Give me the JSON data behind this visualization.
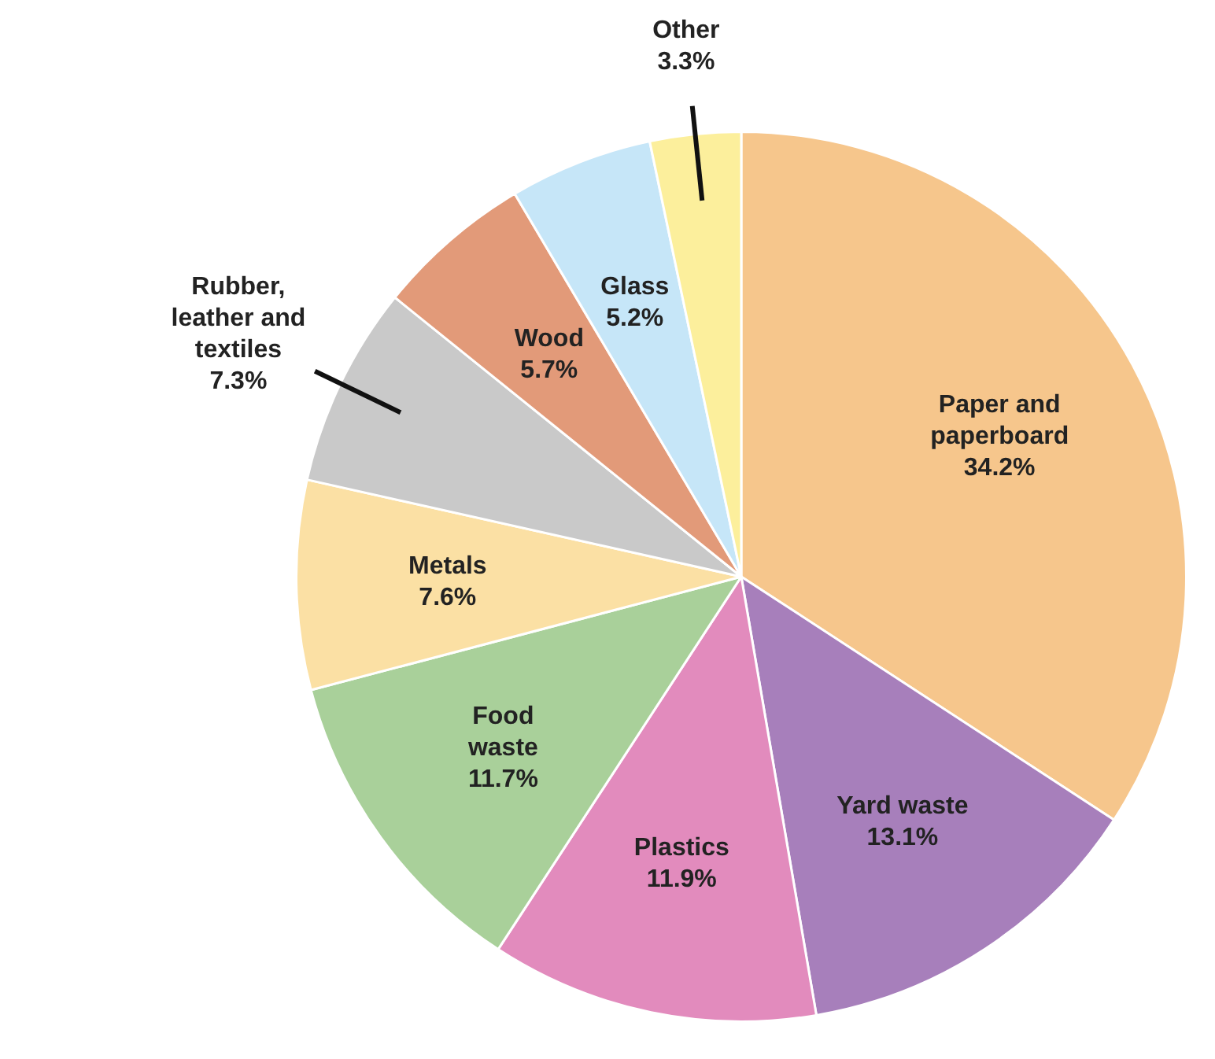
{
  "chart_data": {
    "type": "pie",
    "categories": [
      "Paper and paperboard",
      "Yard waste",
      "Plastics",
      "Food waste",
      "Metals",
      "Rubber, leather and textiles",
      "Wood",
      "Glass",
      "Other"
    ],
    "values": [
      34.2,
      13.1,
      11.9,
      11.7,
      7.6,
      7.3,
      5.7,
      5.2,
      3.3
    ],
    "colors": [
      "#f6c68c",
      "#a77fbb",
      "#e28bbd",
      "#a9d09a",
      "#fbe0a4",
      "#c9c9c9",
      "#e29a79",
      "#c6e6f8",
      "#fcef9c"
    ],
    "value_labels": [
      "34.2%",
      "13.1%",
      "11.9%",
      "11.7%",
      "7.6%",
      "7.3%",
      "5.7%",
      "5.2%",
      "3.3%"
    ],
    "legend": false
  }
}
